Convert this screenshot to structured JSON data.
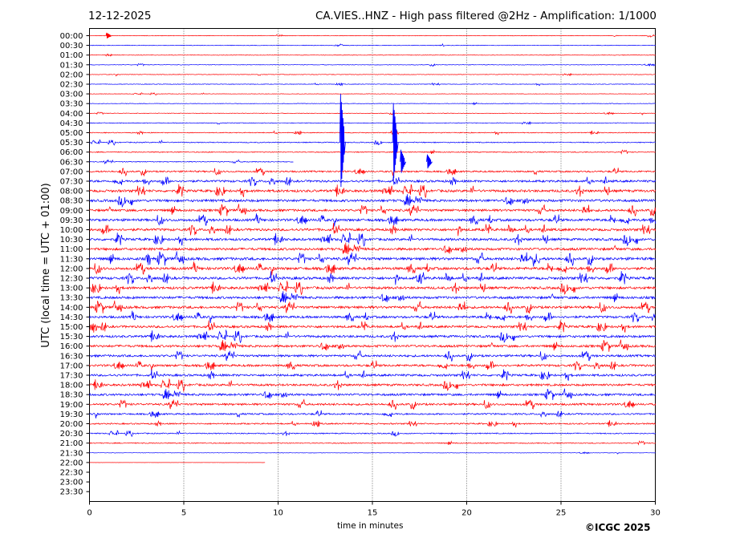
{
  "header": {
    "date": "12-12-2025",
    "title": "CA.VIES..HNZ - High pass filtered @2Hz - Amplification: 1/1000"
  },
  "footer": {
    "copyright": "©ICGC 2025"
  },
  "colors": {
    "red": "#ff0000",
    "blue": "#0000ff",
    "axis": "#000000",
    "grid": "#000000"
  },
  "chart_data": {
    "type": "line",
    "title": "CA.VIES..HNZ - High pass filtered @2Hz - Amplification: 1/1000",
    "xlabel": "time in minutes",
    "ylabel": "UTC (local time = UTC + 01:00)",
    "xlim": [
      0,
      30
    ],
    "xticks": [
      0,
      5,
      10,
      15,
      20,
      25,
      30
    ],
    "grid": "vertical dotted at x ticks",
    "rows": [
      "00:00",
      "00:30",
      "01:00",
      "01:30",
      "02:00",
      "02:30",
      "03:00",
      "03:30",
      "04:00",
      "04:30",
      "05:00",
      "05:30",
      "06:00",
      "06:30",
      "07:00",
      "07:30",
      "08:00",
      "08:30",
      "09:00",
      "09:30",
      "10:00",
      "10:30",
      "11:00",
      "11:30",
      "12:00",
      "12:30",
      "13:00",
      "13:30",
      "14:00",
      "14:30",
      "15:00",
      "15:30",
      "16:00",
      "16:30",
      "17:00",
      "17:30",
      "18:00",
      "18:30",
      "19:00",
      "19:30",
      "20:00",
      "20:30",
      "21:00",
      "21:30",
      "22:00",
      "22:30",
      "23:00",
      "23:30"
    ],
    "row_colors": [
      "red",
      "blue"
    ],
    "trace_end_minutes": {
      "06:30": 10.8,
      "21:30": 30,
      "22:00": 9.3
    },
    "last_row_with_data": "22:00",
    "noise_level": {
      "00:00": 0.2,
      "00:30": 0.2,
      "01:00": 0.2,
      "01:30": 0.2,
      "02:00": 0.2,
      "02:30": 0.2,
      "03:00": 0.15,
      "03:30": 0.2,
      "04:00": 0.2,
      "04:30": 0.25,
      "05:00": 0.3,
      "05:30": 0.35,
      "06:00": 0.35,
      "06:30": 0.3,
      "07:00": 0.6,
      "07:30": 0.8,
      "08:00": 0.9,
      "08:30": 0.9,
      "09:00": 0.85,
      "09:30": 0.9,
      "10:00": 0.9,
      "10:30": 0.9,
      "11:00": 0.9,
      "11:30": 1.0,
      "12:00": 0.95,
      "12:30": 0.95,
      "13:00": 0.9,
      "13:30": 0.9,
      "14:00": 0.9,
      "14:30": 0.85,
      "15:00": 0.85,
      "15:30": 0.85,
      "16:00": 0.85,
      "16:30": 0.8,
      "17:00": 0.8,
      "17:30": 0.8,
      "18:00": 0.8,
      "18:30": 0.8,
      "19:00": 0.75,
      "19:30": 0.6,
      "20:00": 0.5,
      "20:30": 0.4,
      "21:00": 0.35,
      "21:30": 0.15,
      "22:00": 0.05
    },
    "events": [
      {
        "row": "00:00",
        "minute": 1.0,
        "amp": 0.6
      },
      {
        "row": "05:30",
        "minute": 13.4,
        "amp": 10
      },
      {
        "row": "05:30",
        "minute": 16.2,
        "amp": 8
      },
      {
        "row": "06:30",
        "minute": 16.6,
        "amp": 2.5
      },
      {
        "row": "06:30",
        "minute": 18.0,
        "amp": 1.5
      }
    ]
  }
}
